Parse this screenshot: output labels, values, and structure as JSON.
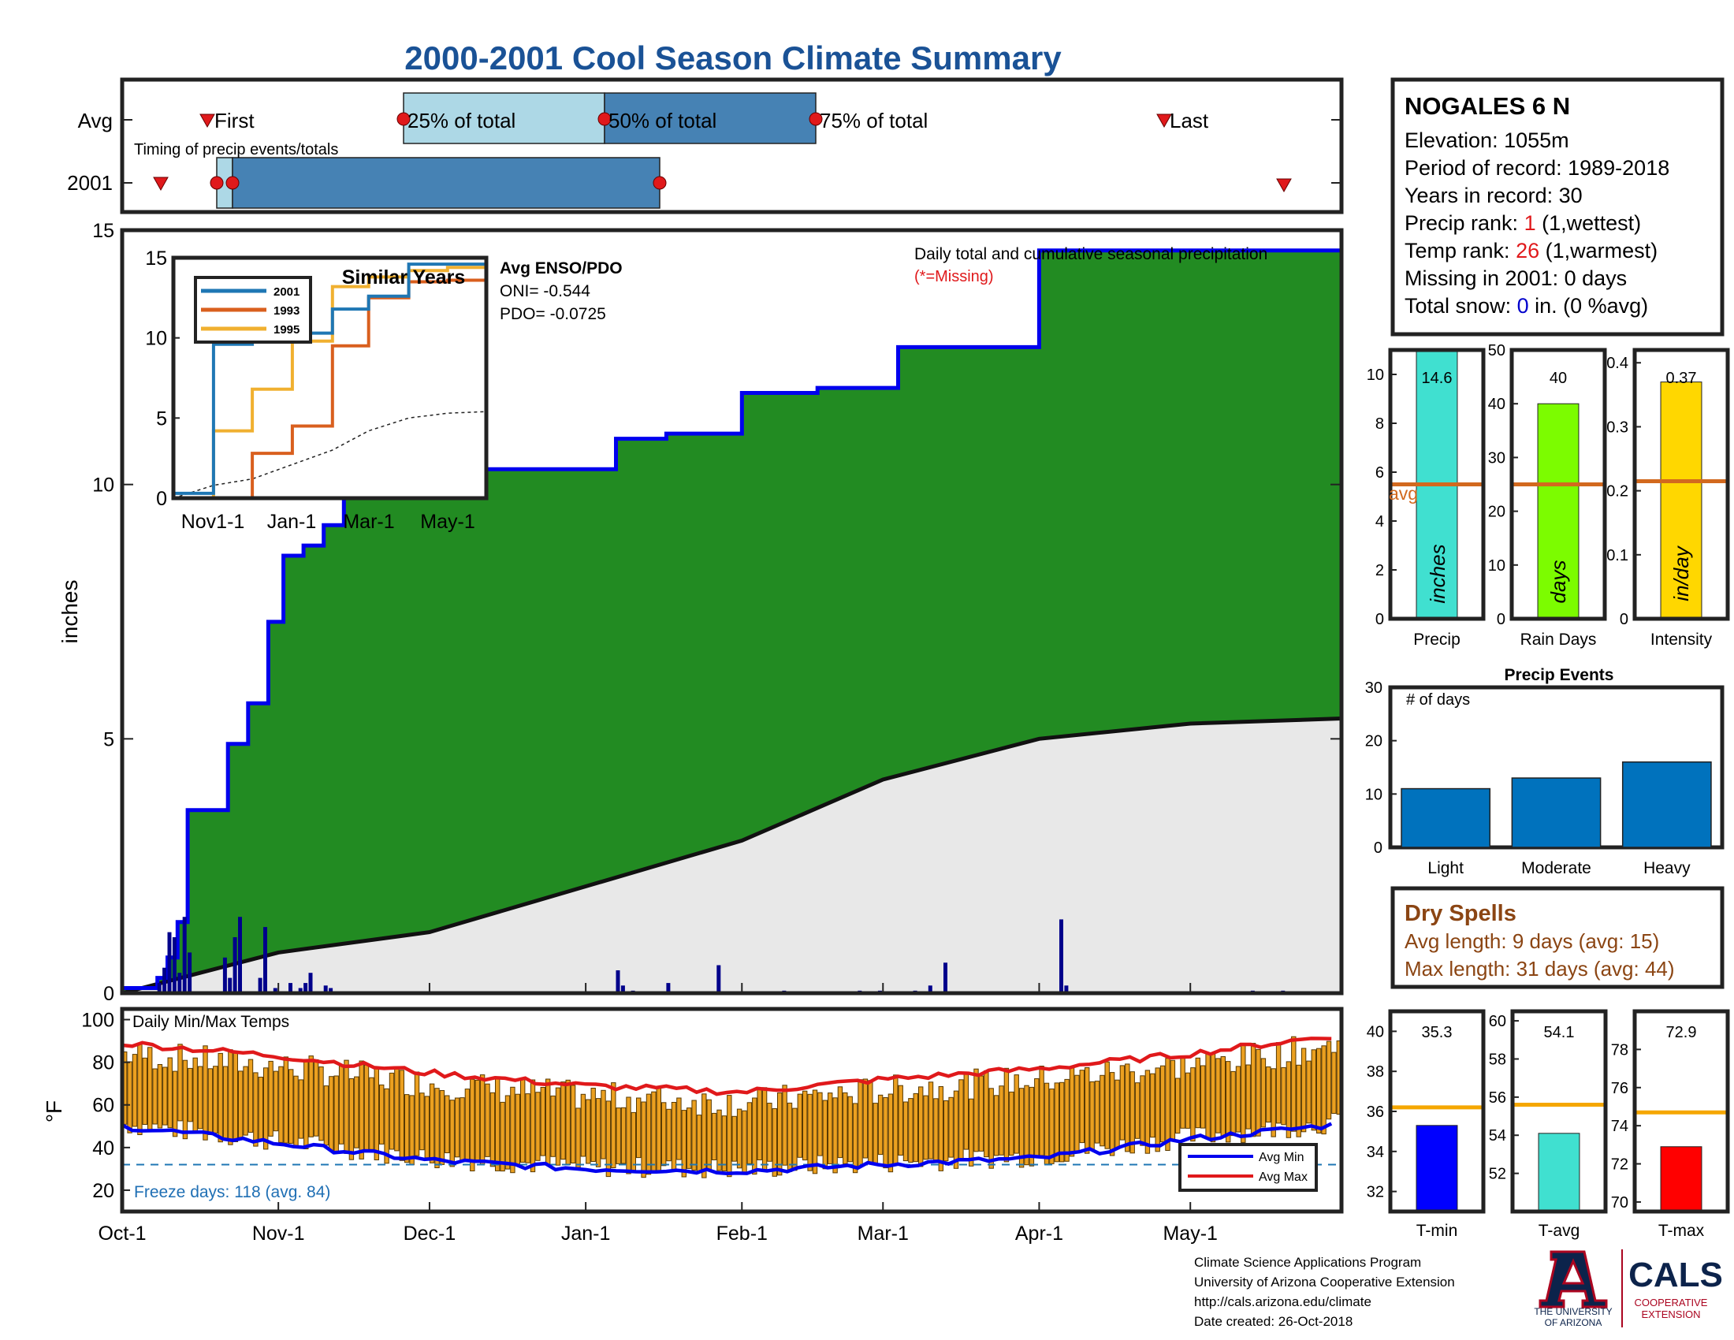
{
  "title": "2000-2001 Cool Season Climate Summary",
  "colors": {
    "title": "#1a5296",
    "green": "#228b22",
    "avgFill": "#e8e8e8",
    "cumLine": "#0000ee",
    "light_blue": "#add8e6",
    "steel_blue": "#4682b4",
    "orange_line": "#d2691e",
    "red": "#e0191b",
    "bars_orange": "#eba020",
    "brown": "#8b4513"
  },
  "timing": {
    "row_labels": [
      "Avg",
      "2001"
    ],
    "caption": "Timing of precip events/totals",
    "first_label": "First",
    "last_label": "Last",
    "p25_label": "25% of total",
    "p50_label": "50% of total",
    "p75_label": "75% of total",
    "avg": {
      "first": "Oct-23",
      "p25": "Dec-2",
      "p50": "Jan-8",
      "p75": "Feb-14",
      "last": "Apr-29"
    },
    "y2001": {
      "first": "Oct-8",
      "p05": "Oct-19",
      "p25": "Oct-22",
      "p50": "Jan-14",
      "last": "May-20"
    }
  },
  "info": {
    "station": "NOGALES 6 N",
    "elevation": "Elevation: 1055m",
    "period": "Period of record: 1989-2018",
    "years": "Years in record: 30",
    "precip_rank_label": "Precip rank: ",
    "precip_rank_value": "1",
    "precip_rank_note": " (1,wettest)",
    "temp_rank_label": "Temp rank: ",
    "temp_rank_value": "26",
    "temp_rank_note": " (1,warmest)",
    "missing": "Missing in 2001: 0 days",
    "snow_label": "Total snow: ",
    "snow_value": "0",
    "snow_note": " in. (0 %avg)"
  },
  "main": {
    "ylabel": "inches",
    "caption": "Daily total and cumulative seasonal precipitation",
    "missing_note": "(*=Missing)",
    "enso_title": "Avg ENSO/PDO",
    "oni": "ONI= -0.544",
    "pdo": "PDO= -0.0725",
    "x_ticks": [
      "Oct-1",
      "Nov-1",
      "Dec-1",
      "Jan-1",
      "Feb-1",
      "Mar-1",
      "Apr-1",
      "May-1"
    ],
    "y_ticks": [
      "0",
      "5",
      "10",
      "15"
    ]
  },
  "inset": {
    "title": "Similar Years",
    "legend": [
      "2001",
      "1993",
      "1995"
    ],
    "x_ticks": [
      "Nov1-1",
      "Jan-1",
      "Mar-1",
      "May-1"
    ],
    "y_ticks": [
      "0",
      "5",
      "10",
      "15"
    ]
  },
  "temps": {
    "ylabel": "°F",
    "caption": "Daily Min/Max Temps",
    "freeze": "Freeze days: 118 (avg. 84)",
    "legend": [
      "Avg Min",
      "Avg Max"
    ],
    "y_ticks": [
      "20",
      "40",
      "60",
      "80",
      "100"
    ]
  },
  "mini": {
    "precip": {
      "label": "Precip",
      "unit": "inches",
      "value": "14.6",
      "avg_label": "avg",
      "ticks": [
        "0",
        "2",
        "4",
        "6",
        "8",
        "10"
      ]
    },
    "rain_days": {
      "label": "Rain Days",
      "unit": "days",
      "value": "40",
      "ticks": [
        "0",
        "10",
        "20",
        "30",
        "40",
        "50"
      ]
    },
    "intensity": {
      "label": "Intensity",
      "unit": "in/day",
      "value": "0.37",
      "ticks": [
        "0",
        "0.1",
        "0.2",
        "0.3",
        "0.4"
      ]
    }
  },
  "events": {
    "title": "Precip Events",
    "ylabel": "# of days",
    "categories": [
      "Light",
      "Moderate",
      "Heavy"
    ],
    "ticks": [
      "0",
      "10",
      "20",
      "30"
    ]
  },
  "dry": {
    "title": "Dry Spells",
    "avg": "Avg length: 9 days (avg: 15)",
    "max": "Max length: 31 days (avg: 44)"
  },
  "temp_bars": {
    "tmin": {
      "label": "T-min",
      "value": "35.3",
      "ticks": [
        "32",
        "34",
        "36",
        "38",
        "40"
      ]
    },
    "tavg": {
      "label": "T-avg",
      "value": "54.1",
      "ticks": [
        "52",
        "54",
        "56",
        "58",
        "60"
      ]
    },
    "tmax": {
      "label": "T-max",
      "value": "72.9",
      "ticks": [
        "70",
        "72",
        "74",
        "76",
        "78"
      ]
    }
  },
  "footer": {
    "line1": "Climate Science Applications Program",
    "line2": "University of Arizona Cooperative Extension",
    "line3": "http://cals.arizona.edu/climate",
    "line4": " Date created: 26-Oct-2018",
    "ua1": "THE UNIVERSITY",
    "ua2": "OF ARIZONA",
    "cals": "CALS",
    "coop1": "COOPERATIVE",
    "coop2": "EXTENSION"
  },
  "chart_data": [
    {
      "type": "area",
      "title": "Daily total and cumulative seasonal precipitation",
      "xlabel": "",
      "ylabel": "inches",
      "ylim": [
        0,
        15
      ],
      "x_range": [
        "Oct-1",
        "May-31"
      ],
      "series": [
        {
          "name": "2001",
          "x": [
            "Oct-1",
            "Oct-8",
            "Oct-10",
            "Oct-12",
            "Oct-14",
            "Oct-18",
            "Oct-22",
            "Oct-26",
            "Oct-30",
            "Nov-2",
            "Nov-6",
            "Nov-10",
            "Nov-14",
            "Nov-17",
            "Nov-22",
            "Nov-26",
            "Nov-30",
            "Dec-16",
            "Jan-1",
            "Jan-7",
            "Jan-17",
            "Feb-1",
            "Feb-16",
            "Mar-4",
            "Apr-1",
            "May-31"
          ],
          "values": [
            0.1,
            0.3,
            0.7,
            1.4,
            3.6,
            3.6,
            4.9,
            5.7,
            7.3,
            8.6,
            8.8,
            9.2,
            9.8,
            10.0,
            10.2,
            10.2,
            10.3,
            10.3,
            10.3,
            10.9,
            11.0,
            11.8,
            11.9,
            12.7,
            14.6,
            14.6
          ]
        },
        {
          "name": "avg",
          "x": [
            "Oct-1",
            "Nov-1",
            "Dec-1",
            "Jan-1",
            "Feb-1",
            "Mar-1",
            "Apr-1",
            "May-1",
            "May-31"
          ],
          "values": [
            0.0,
            0.8,
            1.2,
            2.1,
            3.0,
            4.2,
            5.0,
            5.3,
            5.4
          ]
        }
      ]
    },
    {
      "type": "line",
      "title": "Similar Years",
      "ylim": [
        0,
        15
      ],
      "x": [
        "Oct-1",
        "Nov-1",
        "Dec-1",
        "Jan-1",
        "Feb-1",
        "Mar-1",
        "Apr-1",
        "May-1",
        "May-31"
      ],
      "series": [
        {
          "name": "2001",
          "values": [
            0.3,
            9.6,
            10.3,
            10.3,
            11.8,
            12.6,
            14.6,
            14.6,
            14.6
          ]
        },
        {
          "name": "1993",
          "values": [
            0,
            0,
            2.8,
            4.5,
            9.5,
            12.5,
            13.5,
            13.6,
            14.6
          ]
        },
        {
          "name": "1995",
          "values": [
            0,
            4.2,
            6.8,
            9.8,
            13.2,
            13.8,
            14.2,
            14.4,
            14.6
          ]
        }
      ]
    },
    {
      "type": "line",
      "title": "Daily Min/Max Temps",
      "ylabel": "°F",
      "ylim": [
        10,
        105
      ],
      "x": [
        "Oct-1",
        "Nov-1",
        "Dec-1",
        "Jan-1",
        "Feb-1",
        "Mar-1",
        "Apr-1",
        "May-1",
        "May-31"
      ],
      "series": [
        {
          "name": "Avg Min",
          "values": [
            50,
            42,
            34,
            30,
            29,
            32,
            35,
            44,
            51
          ]
        },
        {
          "name": "Avg Max",
          "values": [
            89,
            83,
            75,
            69,
            66,
            72,
            77,
            84,
            93
          ]
        }
      ]
    },
    {
      "type": "bar",
      "title": "Precip Events",
      "ylabel": "# of days",
      "categories": [
        "Light",
        "Moderate",
        "Heavy"
      ],
      "values": [
        11,
        13,
        16
      ],
      "ylim": [
        0,
        30
      ]
    },
    {
      "type": "bar",
      "categories": [
        "Precip",
        "Rain Days",
        "Intensity"
      ],
      "series": [
        {
          "name": "2001",
          "values": [
            14.6,
            40,
            0.37
          ]
        },
        {
          "name": "avg",
          "values": [
            5.5,
            25,
            0.215
          ]
        }
      ]
    },
    {
      "type": "bar",
      "categories": [
        "T-min",
        "T-avg",
        "T-max"
      ],
      "series": [
        {
          "name": "2001",
          "values": [
            35.3,
            54.1,
            72.9
          ]
        },
        {
          "name": "avg",
          "values": [
            36.2,
            55.6,
            74.7
          ]
        }
      ]
    }
  ]
}
